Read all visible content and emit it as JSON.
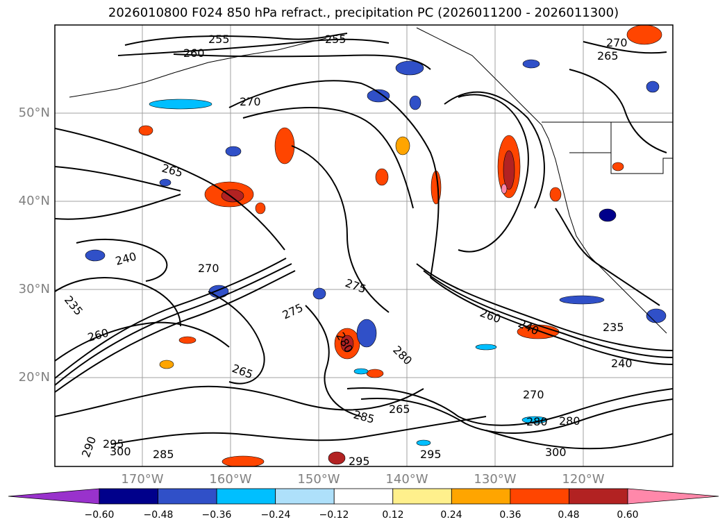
{
  "title": "2026010800 F024 850 hPa refract., precipitation PC (2026011200 - 2026011300)",
  "lat_labels": [
    "50°N",
    "40°N",
    "30°N",
    "20°N"
  ],
  "lon_labels": [
    "170°W",
    "160°W",
    "150°W",
    "140°W",
    "130°W",
    "120°W"
  ],
  "colorbar": {
    "ticks": [
      "−0.60",
      "−0.48",
      "−0.36",
      "−0.24",
      "−0.12",
      "0.12",
      "0.24",
      "0.36",
      "0.48",
      "0.60"
    ],
    "colors": [
      "#9932cc",
      "#00008b",
      "#3050c8",
      "#00bfff",
      "#aee0fa",
      "#ffffff",
      "#fff08c",
      "#ffa500",
      "#ff4500",
      "#b22222",
      "#ff88aa"
    ]
  },
  "contour_labels": [
    "255",
    "255",
    "260",
    "270",
    "265",
    "270",
    "265",
    "270",
    "240",
    "235",
    "260",
    "265",
    "275",
    "275",
    "280",
    "280",
    "285",
    "285",
    "290",
    "295",
    "300",
    "295",
    "295",
    "300",
    "270",
    "280",
    "240",
    "235",
    "240",
    "260",
    "280",
    "265"
  ]
}
